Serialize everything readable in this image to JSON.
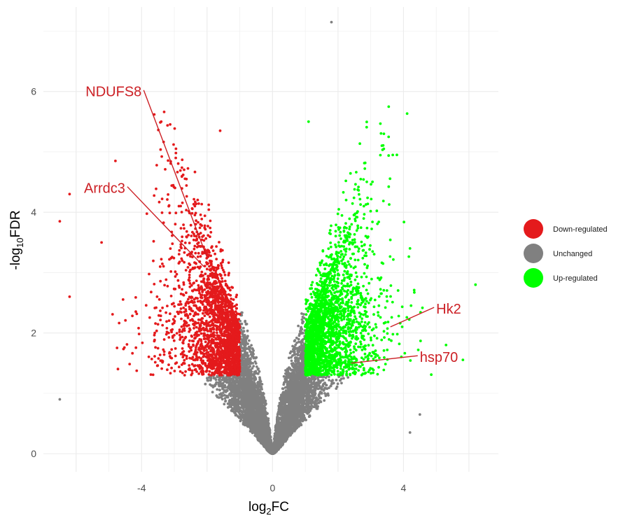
{
  "chart_data": {
    "type": "scatter",
    "xlabel": {
      "base": "log",
      "sub": "2",
      "rest": "FC"
    },
    "ylabel": {
      "prefix": "-log",
      "sub": "10",
      "rest": "FDR"
    },
    "xlim": [
      -7.0,
      6.9
    ],
    "ylim": [
      -0.3,
      7.4
    ],
    "x_ticks": [
      -4,
      0,
      4
    ],
    "y_ticks": [
      0,
      2,
      4,
      6
    ],
    "grid": true,
    "legend_placement": "right",
    "legend": [
      {
        "key": "down",
        "label": "Down-regulated",
        "color": "#e41a1c"
      },
      {
        "key": "unchanged",
        "label": "Unchanged",
        "color": "#808080"
      },
      {
        "key": "up",
        "label": "Up-regulated",
        "color": "#00ff00"
      }
    ],
    "thresholds": {
      "log2fc": 1,
      "neg_log10_fdr": 1.3
    },
    "annotations": [
      {
        "label": "NDUFS8",
        "point": [
          -2.0,
          3.25
        ],
        "text_pos": [
          -4.0,
          6.0
        ],
        "anchor": "end"
      },
      {
        "label": "Arrdc3",
        "point": [
          -2.1,
          3.1
        ],
        "text_pos": [
          -4.5,
          4.4
        ],
        "anchor": "end"
      },
      {
        "label": "Hk2",
        "point": [
          3.6,
          2.1
        ],
        "text_pos": [
          5.0,
          2.4
        ],
        "anchor": "start"
      },
      {
        "label": "hsp70",
        "point": [
          2.4,
          1.5
        ],
        "text_pos": [
          4.5,
          1.6
        ],
        "anchor": "start"
      }
    ],
    "label_color": "#cc1f24",
    "notable_points": [
      {
        "group": "unchanged",
        "x": 1.8,
        "y": 7.15
      },
      {
        "group": "up",
        "x": 6.2,
        "y": 2.8
      },
      {
        "group": "up",
        "x": 3.4,
        "y": 5.05
      },
      {
        "group": "up",
        "x": 3.8,
        "y": 4.95
      },
      {
        "group": "up",
        "x": 1.1,
        "y": 5.5
      },
      {
        "group": "down",
        "x": -3.4,
        "y": 5.5
      },
      {
        "group": "down",
        "x": -1.6,
        "y": 5.35
      },
      {
        "group": "down",
        "x": -6.5,
        "y": 3.85
      },
      {
        "group": "down",
        "x": -6.2,
        "y": 4.3
      },
      {
        "group": "down",
        "x": -6.2,
        "y": 2.6
      },
      {
        "group": "down",
        "x": -4.8,
        "y": 4.85
      },
      {
        "group": "unchanged",
        "x": -6.5,
        "y": 0.9
      },
      {
        "group": "unchanged",
        "x": 4.5,
        "y": 0.65
      },
      {
        "group": "unchanged",
        "x": 4.2,
        "y": 0.35
      },
      {
        "group": "up",
        "x": 5.3,
        "y": 1.8
      },
      {
        "group": "up",
        "x": 4.2,
        "y": 3.4
      }
    ]
  }
}
